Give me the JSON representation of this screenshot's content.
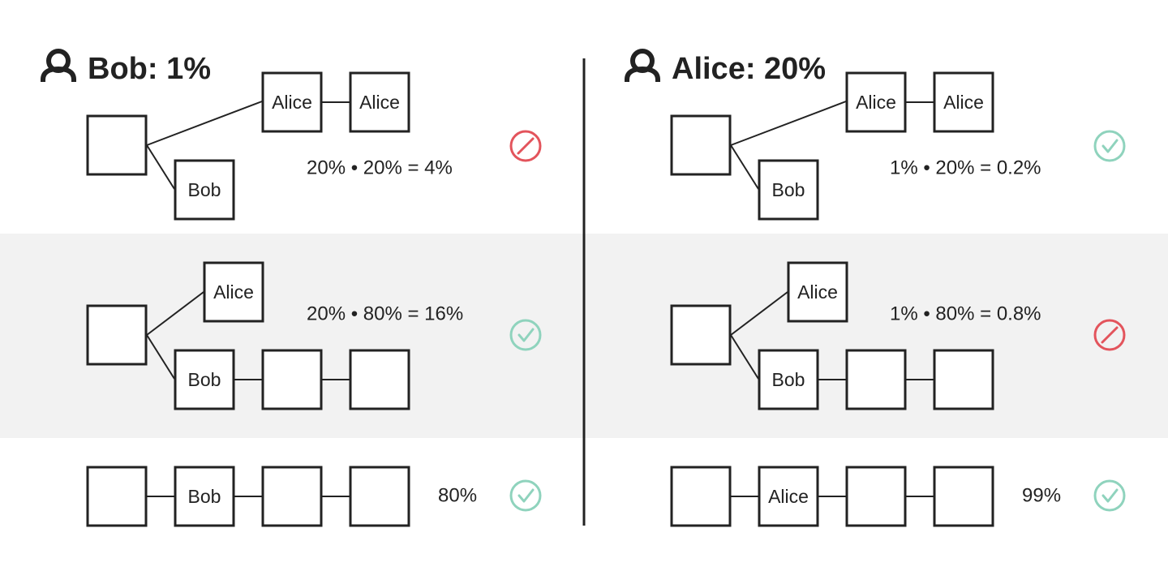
{
  "colors": {
    "ink": "#222222",
    "band": "#f2f2f2",
    "ok": "#8fd3bd",
    "bad": "#e3545c"
  },
  "icons": {
    "user": "user-icon",
    "ok": "check-circle-icon",
    "bad": "prohibited-icon"
  },
  "left": {
    "header": "Bob: 1%",
    "rows": [
      {
        "labels": [
          "Alice",
          "Alice",
          "Bob"
        ],
        "equation": "20% • 20% = 4%",
        "status": "bad"
      },
      {
        "labels": [
          "Alice",
          "Bob"
        ],
        "equation": "20% • 80% = 16%",
        "status": "ok"
      },
      {
        "labels": [
          "Bob"
        ],
        "equation": "80%",
        "status": "ok"
      }
    ]
  },
  "right": {
    "header": "Alice: 20%",
    "rows": [
      {
        "labels": [
          "Alice",
          "Alice",
          "Bob"
        ],
        "equation": "1% • 20% = 0.2%",
        "status": "ok"
      },
      {
        "labels": [
          "Alice",
          "Bob"
        ],
        "equation": "1% • 80% = 0.8%",
        "status": "bad"
      },
      {
        "labels": [
          "Alice"
        ],
        "equation": "99%",
        "status": "ok"
      }
    ]
  }
}
